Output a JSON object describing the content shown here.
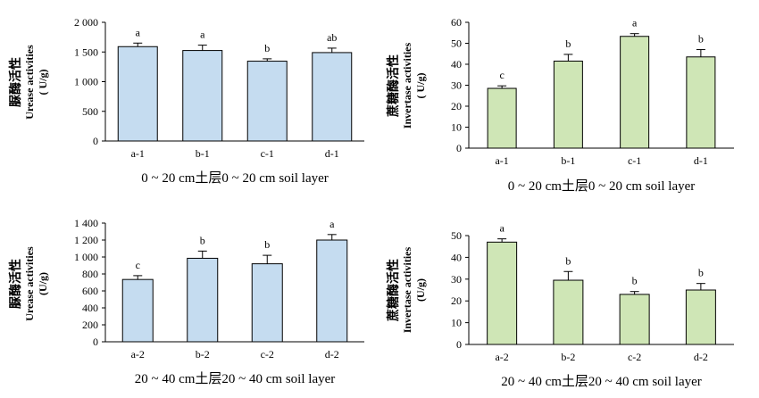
{
  "chart_data": [
    {
      "type": "bar",
      "categories": [
        "a-1",
        "b-1",
        "c-1",
        "d-1"
      ],
      "values": [
        1590,
        1525,
        1345,
        1490
      ],
      "errors": [
        60,
        90,
        40,
        75
      ],
      "significance": [
        "a",
        "a",
        "b",
        "ab"
      ],
      "ylim": [
        0,
        2000
      ],
      "yticks": [
        "0",
        "500",
        "1 000",
        "1 500",
        "2 000"
      ],
      "ylabel": [
        "脲酶活性",
        "Urease activities",
        "( U/g)"
      ],
      "xlabel": "0 ~ 20 cm土层0 ~ 20 cm soil layer",
      "color": "#c5dcf0"
    },
    {
      "type": "bar",
      "categories": [
        "a-1",
        "b-1",
        "c-1",
        "d-1"
      ],
      "values": [
        28.5,
        41.5,
        53.3,
        43.5
      ],
      "errors": [
        1.2,
        3.2,
        1.3,
        3.5
      ],
      "significance": [
        "c",
        "b",
        "a",
        "b"
      ],
      "ylim": [
        0,
        60
      ],
      "yticks": [
        "0",
        "10",
        "20",
        "30",
        "40",
        "50",
        "60"
      ],
      "ylabel": [
        "蔗糖酶活性",
        "Invertase activities",
        "( U/g)"
      ],
      "xlabel": "0 ~ 20 cm土层0 ~ 20 cm soil layer",
      "color": "#cfe6b6"
    },
    {
      "type": "bar",
      "categories": [
        "a-2",
        "b-2",
        "c-2",
        "d-2"
      ],
      "values": [
        735,
        985,
        920,
        1200
      ],
      "errors": [
        45,
        85,
        100,
        65
      ],
      "significance": [
        "c",
        "b",
        "b",
        "a"
      ],
      "ylim": [
        0,
        1400
      ],
      "yticks": [
        "0",
        "200",
        "400",
        "600",
        "800",
        "1 000",
        "1 200",
        "1 400"
      ],
      "ylabel": [
        "脲酶活性",
        "Urease activities",
        "(U/g)"
      ],
      "xlabel": "20 ~ 40 cm土层20 ~ 40 cm soil layer",
      "color": "#c5dcf0"
    },
    {
      "type": "bar",
      "categories": [
        "a-2",
        "b-2",
        "c-2",
        "d-2"
      ],
      "values": [
        47,
        29.5,
        23,
        25
      ],
      "errors": [
        1.5,
        4,
        1.3,
        3
      ],
      "significance": [
        "a",
        "b",
        "b",
        "b"
      ],
      "ylim": [
        0,
        50
      ],
      "yticks": [
        "0",
        "10",
        "20",
        "30",
        "40",
        "50"
      ],
      "ylabel": [
        "蔗糖酶活性",
        "Invertase activities",
        "(U/g)"
      ],
      "xlabel": "20 ~ 40 cm土层20 ~ 40 cm soil layer",
      "color": "#cfe6b6"
    }
  ]
}
